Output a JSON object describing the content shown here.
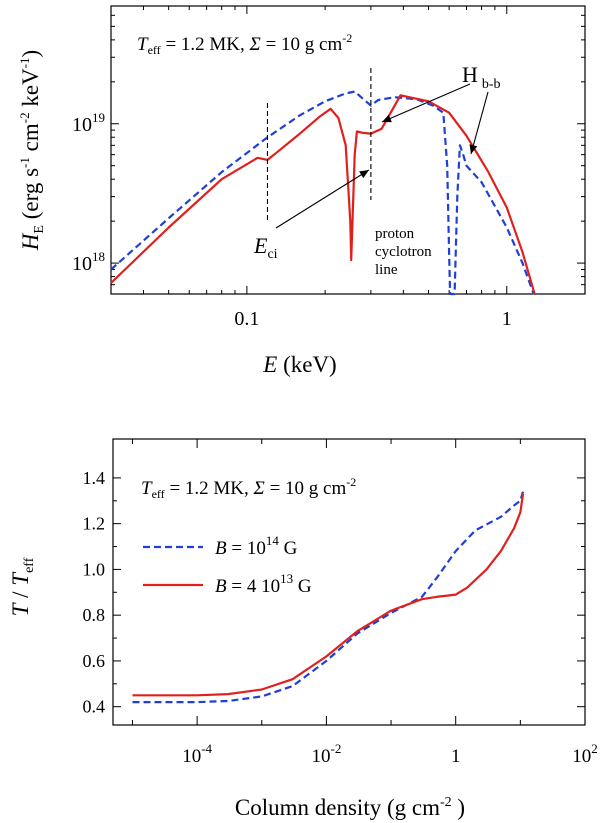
{
  "chart_data": [
    {
      "type": "line",
      "xscale": "log",
      "yscale": "log",
      "xlim": [
        0.03,
        2
      ],
      "ylim": [
        6e+17,
        7e+19
      ],
      "xlabel": "E (keV)",
      "ylabel": "H_E (erg s^-1 cm^-2 keV^-1)",
      "xticks": [
        {
          "value": 0.1,
          "label": "0.1"
        },
        {
          "value": 1,
          "label": "1"
        }
      ],
      "yticks": [
        {
          "value": 1e+18,
          "base": "10",
          "exp": "18"
        },
        {
          "value": 1e+19,
          "base": "10",
          "exp": "19"
        }
      ],
      "params_label": {
        "teff_sym": "T",
        "teff_sub": "eff",
        "teff_val": "= 1.2 MK,",
        "sigma_sym": "Σ",
        "sigma_val": "= 10 g cm",
        "sigma_exp": "-2"
      },
      "annotations": {
        "eci": {
          "main": "E",
          "sub": "ci",
          "x": 0.12
        },
        "proton_line": {
          "lines": [
            "proton",
            "cyclotron",
            "line"
          ],
          "x": 0.3
        },
        "hbb": {
          "main": "H",
          "sub": "b-b"
        }
      },
      "series": [
        {
          "name": "B = 10^14 G",
          "color": "#1f3fd8",
          "style": "dashed",
          "points": [
            [
              0.03,
              9e+17
            ],
            [
              0.05,
              2.1e+18
            ],
            [
              0.08,
              4.5e+18
            ],
            [
              0.12,
              8e+18
            ],
            [
              0.16,
              1.15e+19
            ],
            [
              0.2,
              1.45e+19
            ],
            [
              0.24,
              1.65e+19
            ],
            [
              0.26,
              1.7e+19
            ],
            [
              0.3,
              1.35e+19
            ],
            [
              0.32,
              1.48e+19
            ],
            [
              0.37,
              1.55e+19
            ],
            [
              0.45,
              1.5e+19
            ],
            [
              0.52,
              1.35e+19
            ],
            [
              0.57,
              1.2e+19
            ],
            [
              0.59,
              5e+18
            ],
            [
              0.6,
              1.2e+18
            ],
            [
              0.605,
              6e+17
            ],
            [
              0.63,
              6e+17
            ],
            [
              0.645,
              3e+18
            ],
            [
              0.66,
              7e+18
            ],
            [
              0.68,
              6e+18
            ],
            [
              0.7,
              5e+18
            ],
            [
              0.8,
              3.8e+18
            ],
            [
              1.0,
              1.8e+18
            ],
            [
              1.15,
              1e+18
            ],
            [
              1.27,
              6e+17
            ]
          ]
        },
        {
          "name": "B = 4 10^13 G",
          "color": "#e0201e",
          "style": "solid",
          "points": [
            [
              0.03,
              7.2e+17
            ],
            [
              0.05,
              1.8e+18
            ],
            [
              0.08,
              4e+18
            ],
            [
              0.11,
              5.7e+18
            ],
            [
              0.12,
              5.5e+18
            ],
            [
              0.13,
              6.2e+18
            ],
            [
              0.16,
              8.5e+18
            ],
            [
              0.19,
              1.12e+19
            ],
            [
              0.21,
              1.28e+19
            ],
            [
              0.225,
              1.1e+19
            ],
            [
              0.24,
              7e+18
            ],
            [
              0.25,
              2e+18
            ],
            [
              0.252,
              1.05e+18
            ],
            [
              0.255,
              2e+18
            ],
            [
              0.26,
              6e+18
            ],
            [
              0.265,
              8.8e+18
            ],
            [
              0.28,
              8.6e+18
            ],
            [
              0.3,
              8.5e+18
            ],
            [
              0.33,
              9.2e+18
            ],
            [
              0.39,
              1.6e+19
            ],
            [
              0.5,
              1.45e+19
            ],
            [
              0.6,
              1.2e+19
            ],
            [
              0.7,
              8.2e+18
            ],
            [
              0.85,
              4.5e+18
            ],
            [
              1.0,
              2.5e+18
            ],
            [
              1.15,
              1.2e+18
            ],
            [
              1.28,
              6e+17
            ]
          ]
        }
      ]
    },
    {
      "type": "line",
      "xscale": "log",
      "yscale": "linear",
      "xlim": [
        5e-06,
        100
      ],
      "ylim": [
        0.32,
        1.57
      ],
      "xlabel": "Column density (g cm^-2)",
      "ylabel": "T / T_eff",
      "xticks": [
        {
          "value": 0.0001,
          "base": "10",
          "exp": "-4"
        },
        {
          "value": 0.01,
          "base": "10",
          "exp": "-2"
        },
        {
          "value": 1,
          "label": "1"
        },
        {
          "value": 100,
          "base": "10",
          "exp": "2"
        }
      ],
      "yticks": [
        0.4,
        0.6,
        0.8,
        1.0,
        1.2,
        1.4
      ],
      "ytick_labels": [
        "0.4",
        "0.6",
        "0.8",
        "1.0",
        "1.2",
        "1.4"
      ],
      "params_label": {
        "teff_sym": "T",
        "teff_sub": "eff",
        "teff_val": "= 1.2 MK,",
        "sigma_sym": "Σ",
        "sigma_val": "= 10 g cm",
        "sigma_exp": "-2"
      },
      "legend": [
        {
          "sym": "B",
          "pre": "= 10",
          "exp": "14",
          "post": " G",
          "color": "#1f3fd8",
          "style": "dashed"
        },
        {
          "sym": "B",
          "pre": "= 4 10",
          "exp": "13",
          "post": " G",
          "color": "#e0201e",
          "style": "solid"
        }
      ],
      "series": [
        {
          "name": "B = 10^14 G",
          "color": "#1f3fd8",
          "style": "dashed",
          "points": [
            [
              1e-05,
              0.42
            ],
            [
              3e-05,
              0.42
            ],
            [
              0.0001,
              0.42
            ],
            [
              0.0003,
              0.425
            ],
            [
              0.001,
              0.445
            ],
            [
              0.003,
              0.49
            ],
            [
              0.01,
              0.6
            ],
            [
              0.03,
              0.72
            ],
            [
              0.1,
              0.81
            ],
            [
              0.3,
              0.88
            ],
            [
              0.5,
              0.96
            ],
            [
              1,
              1.08
            ],
            [
              2,
              1.17
            ],
            [
              5,
              1.23
            ],
            [
              8,
              1.28
            ],
            [
              10,
              1.3
            ],
            [
              11,
              1.34
            ]
          ]
        },
        {
          "name": "B = 4 10^13 G",
          "color": "#e0201e",
          "style": "solid",
          "points": [
            [
              1e-05,
              0.45
            ],
            [
              0.0001,
              0.45
            ],
            [
              0.0003,
              0.455
            ],
            [
              0.001,
              0.475
            ],
            [
              0.003,
              0.52
            ],
            [
              0.01,
              0.62
            ],
            [
              0.03,
              0.73
            ],
            [
              0.1,
              0.82
            ],
            [
              0.3,
              0.87
            ],
            [
              0.5,
              0.88
            ],
            [
              1,
              0.89
            ],
            [
              1.5,
              0.92
            ],
            [
              3,
              1.0
            ],
            [
              5,
              1.08
            ],
            [
              8,
              1.18
            ],
            [
              10,
              1.25
            ],
            [
              11,
              1.33
            ]
          ]
        }
      ]
    }
  ]
}
